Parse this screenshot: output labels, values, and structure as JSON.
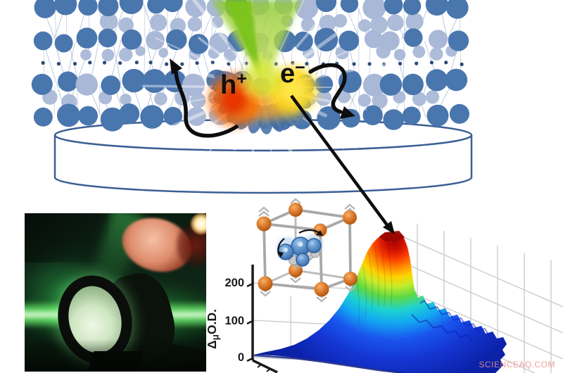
{
  "figure": {
    "hole": {
      "base": "h",
      "sup": "+"
    },
    "electron": {
      "base": "e",
      "sup": "−"
    }
  },
  "plot": {
    "axis_label": {
      "delta": "Δ",
      "mu": "μ",
      "od": "O.D."
    },
    "ticks": [
      "200",
      "100",
      "0"
    ]
  },
  "watermark": "SCIENCEAQ.COM",
  "colors": {
    "lattice_dark": "#4a76ae",
    "lattice_light": "#a9b8d7",
    "lattice_line": "#9db0d0",
    "lattice_dot": "#2c4a78",
    "petal_blue": "#3e6aa5",
    "disc_outline": "#3a5f94",
    "beam_green": "#7cc41f",
    "glow_red": "#e83300",
    "glow_orange": "#ff9d1e",
    "glow_yellow": "#ffd818",
    "cube_edge": "#a8a8a8",
    "atom_orange": "#c96716",
    "molecule_blue": "#4f83c2",
    "chevron_gray": "#b6b6b6",
    "axis_black": "#1a1a1a",
    "grid_gray": "#c9c9c9",
    "surface_peak_red": "#cf0f00",
    "surface_base_blue": "#0c23ac",
    "watermark_pink": "#f08f8f"
  },
  "chart_data": {
    "type": "area",
    "subtype": "3d-surface-waterfall",
    "title": "",
    "zlabel": "ΔμO.D.",
    "zticks": [
      0,
      100,
      200
    ],
    "zlim": [
      0,
      260
    ],
    "peak_z_estimate": 250,
    "colormap": "jet",
    "grid": true,
    "legend": "none",
    "description": "Sharp transient-absorption peak (red, ~250 ΔμO.D.) decaying into a broad flat blue baseline near 0"
  }
}
